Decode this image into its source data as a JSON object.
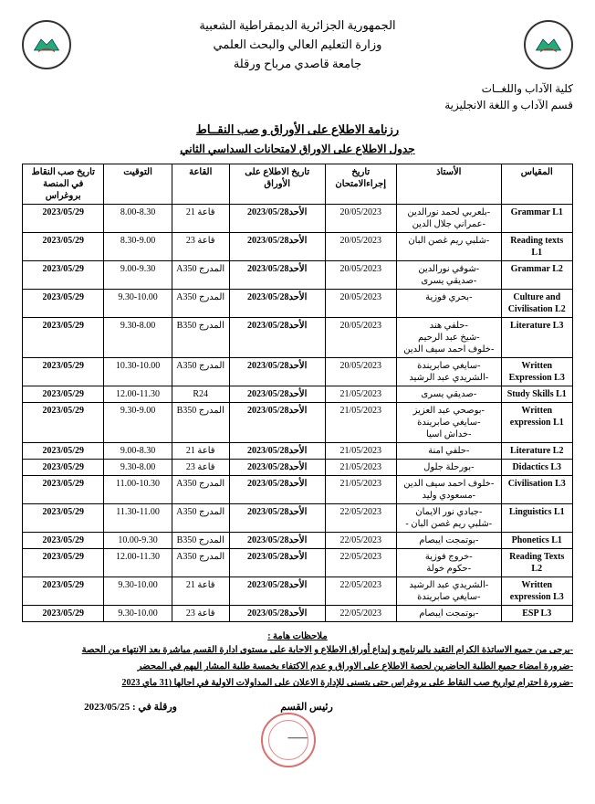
{
  "header": {
    "line1": "الجمهورية الجزائرية الديمقراطية الشعبية",
    "line2": "وزارة التعليم العالي والبحث العلمي",
    "line3": "جامعة قاصدي مرباح ورقلة"
  },
  "faculty": {
    "line1": "كلية الآداب واللغــات",
    "line2": "قسم الآداب و اللغة الانجليزية"
  },
  "titles": {
    "main": "رزنامة الاطلاع على الأوراق و صب النقــاط",
    "sub": "جدول الاطلاع على الاوراق لامتحانات السداسي الثاني"
  },
  "columns": {
    "c1": "المقياس",
    "c2": "الأستاذ",
    "c3": "تاريخ إجراءالامتحان",
    "c4": "تاريخ الاطلاع على الأوراق",
    "c5": "القاعة",
    "c6": "التوقيت",
    "c7": "تاريخ صب النقاط في المنصة بروغراس"
  },
  "rows": [
    {
      "subject": "Grammar L1",
      "teacher": "-بلعربي لحمد نورالدين\n-عمراني جلال الدين",
      "date1": "20/05/2023",
      "date2": "الأحد2023/05/28",
      "room": "قاعة 21",
      "time": "8.00-8.30",
      "date3": "2023/05/29"
    },
    {
      "subject": "Reading texts L1",
      "teacher": "-شلبي ريم غصن البان",
      "date1": "20/05/2023",
      "date2": "الأحد2023/05/28",
      "room": "قاعة 23",
      "time": "8.30-9.00",
      "date3": "2023/05/29"
    },
    {
      "subject": "Grammar L2",
      "teacher": "-شوقي نورالدين\n-صديقي يسرى",
      "date1": "20/05/2023",
      "date2": "الأحد2023/05/28",
      "room": "المدرج A350",
      "time": "9.00-9.30",
      "date3": "2023/05/29"
    },
    {
      "subject": "Culture and Civilisation L2",
      "teacher": "-بحري فوزية",
      "date1": "20/05/2023",
      "date2": "الأحد2023/05/28",
      "room": "المدرج A350",
      "time": "9.30-10.00",
      "date3": "2023/05/29"
    },
    {
      "subject": "Literature L3",
      "teacher": "-حلفي هند\n-شيخ عبد الرحيم\n-خلوف احمد سيف الدين",
      "date1": "20/05/2023",
      "date2": "الأحد2023/05/28",
      "room": "المدرج B350",
      "time": "9.30-8.00",
      "date3": "2023/05/29"
    },
    {
      "subject": "Written Expression L3",
      "teacher": "-سايغي صابريندة\n-الشريدي عبد الرشيد",
      "date1": "20/05/2023",
      "date2": "الأحد2023/05/28",
      "room": "المدرج A350",
      "time": "10.30-10.00",
      "date3": "2023/05/29"
    },
    {
      "subject": "Study Skills L1",
      "teacher": "-صديقي يسرى",
      "date1": "21/05/2023",
      "date2": "الأحد2023/05/28",
      "room": "R24",
      "time": "12.00-11.30",
      "date3": "2023/05/29"
    },
    {
      "subject": "Written expression L1",
      "teacher": "-بوصحي عبد العزيز\n-سايغي صابريندة\n-خداش اسيا",
      "date1": "21/05/2023",
      "date2": "الأحد2023/05/28",
      "room": "المدرج B350",
      "time": "9.30-9.00",
      "date3": "2023/05/29"
    },
    {
      "subject": "Literature L2",
      "teacher": "-حلفي امنة",
      "date1": "21/05/2023",
      "date2": "الأحد2023/05/28",
      "room": "قاعة 21",
      "time": "9.00-8.30",
      "date3": "2023/05/29"
    },
    {
      "subject": "Didactics L3",
      "teacher": "-بورحلة جلول",
      "date1": "21/05/2023",
      "date2": "الأحد2023/05/28",
      "room": "قاعة 23",
      "time": "9.30-8.00",
      "date3": "2023/05/29"
    },
    {
      "subject": "Civilisation L3",
      "teacher": "-خلوف احمد سيف الدين\n-مسعودي وليد",
      "date1": "21/05/2023",
      "date2": "الأحد2023/05/28",
      "room": "المدرج A350",
      "time": "11.00-10.30",
      "date3": "2023/05/29"
    },
    {
      "subject": "Linguistics L1",
      "teacher": "-جبادي نور الايمان\n-شلبي ريم غصن البان -",
      "date1": "22/05/2023",
      "date2": "الأحد2023/05/28",
      "room": "المدرج A350",
      "time": "11.30-11.00",
      "date3": "2023/05/29"
    },
    {
      "subject": "Phonetics L1",
      "teacher": "-بوتمجت ايبصام",
      "date1": "22/05/2023",
      "date2": "الأحد2023/05/28",
      "room": "المدرج B350",
      "time": "10.00-9.30",
      "date3": "2023/05/29"
    },
    {
      "subject": "Reading Texts L2",
      "teacher": "-خروج فوزية\n-حكوم خولة",
      "date1": "22/05/2023",
      "date2": "الأحد2023/05/28",
      "room": "المدرج A350",
      "time": "12.00-11.30",
      "date3": "2023/05/29"
    },
    {
      "subject": "Written expression L3",
      "teacher": "-الشريدي عبد الرشيد\n-سايغي صابريندة",
      "date1": "22/05/2023",
      "date2": "الأحد2023/05/28",
      "room": "قاعة 21",
      "time": "9.30-10.00",
      "date3": "2023/05/29"
    },
    {
      "subject": "ESP L3",
      "teacher": "-بوتمجت ايبصام",
      "date1": "22/05/2023",
      "date2": "الأحد2023/05/28",
      "room": "قاعة 23",
      "time": "9.30-10.00",
      "date3": "2023/05/29"
    }
  ],
  "notes": {
    "title": "ملاحظات هامة :",
    "n1": "-يرجى من جميع الاساتذة الكرام التقيد بالبرنامج و إيداع أوراق الاطلاع و الاجابة على مستوى ادارة القسم مباشرة بعد الانتهاء من الحصة",
    "n2": "-ضرورة امضاء جميع الطلبة الحاضرين لحصة الاطلاع على الاوراق و عدم الاكتفاء بخمسة طلبة المشار اليهم في المحضر",
    "n3": "-ضرورة احترام تواريخ صب النقاط على بروغراس حتى يتسنى للإدارة الاعلان على المداولات الاولية في اجالها (31 ماي 2023"
  },
  "footer": {
    "place_date": "ورقلة في :  2023/05/25",
    "signature": "رئيس القسم"
  },
  "style": {
    "border_color": "#000000",
    "bg": "#ffffff",
    "stamp_color": "#cc3333"
  }
}
